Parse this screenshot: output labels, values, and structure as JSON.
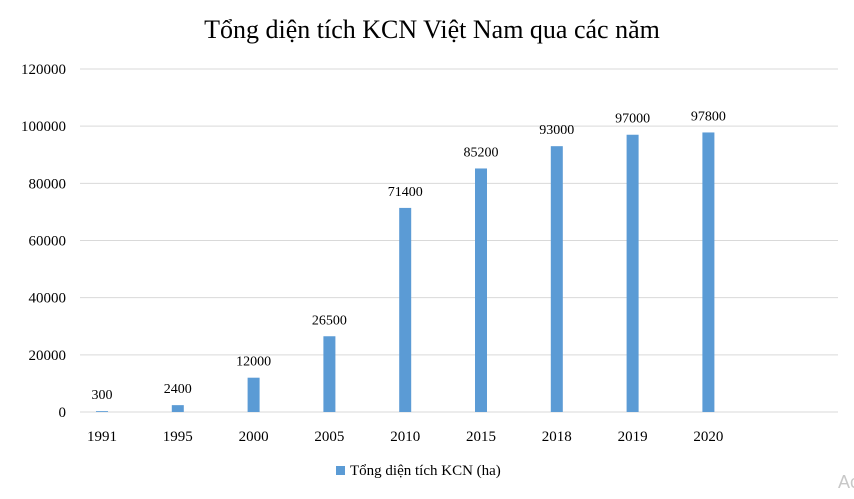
{
  "chart_data": {
    "type": "bar",
    "title": "Tổng diện tích KCN Việt Nam qua các năm",
    "categories": [
      "1991",
      "1995",
      "2000",
      "2005",
      "2010",
      "2015",
      "2018",
      "2019",
      "2020",
      ""
    ],
    "series": [
      {
        "name": "Tổng diện tích KCN (ha)",
        "values": [
          300,
          2400,
          12000,
          26500,
          71400,
          85200,
          93000,
          97000,
          97800,
          null
        ],
        "color": "#5b9bd5"
      }
    ],
    "ylim": [
      0,
      120000
    ],
    "yticks": [
      0,
      20000,
      40000,
      60000,
      80000,
      100000,
      120000
    ],
    "grid": true,
    "data_labels": true,
    "legend_position": "bottom",
    "gridline_color": "#d9d9d9"
  },
  "watermark_text": "Ac"
}
